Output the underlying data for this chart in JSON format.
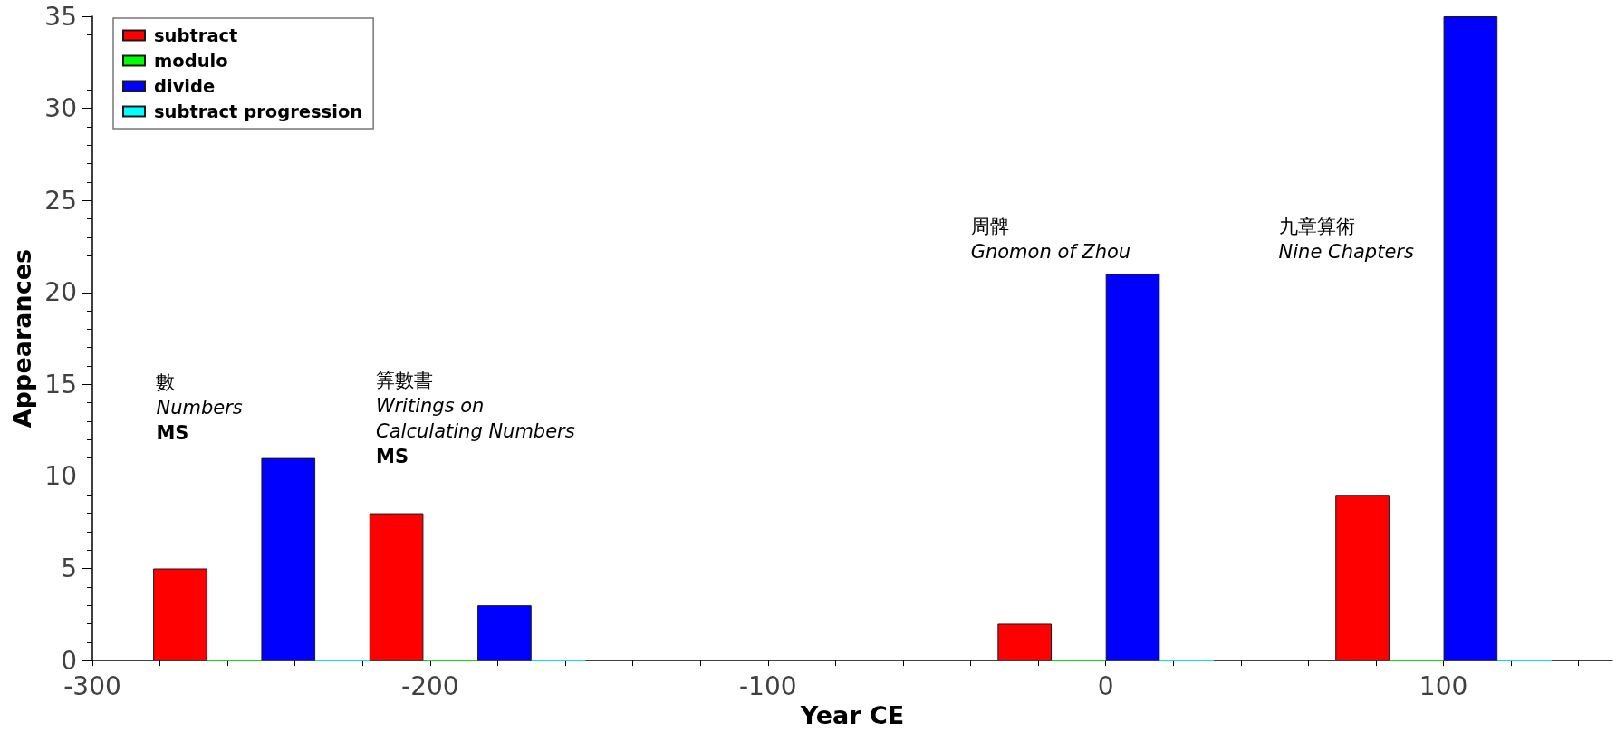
{
  "chart_data": {
    "type": "bar",
    "xlabel": "Year CE",
    "ylabel": "Appearances",
    "x": [
      -250,
      -186,
      0,
      100
    ],
    "series": [
      {
        "name": "subtract",
        "color": "#ff0000",
        "values": [
          5,
          8,
          2,
          9
        ]
      },
      {
        "name": "modulo",
        "color": "#00ff00",
        "values": [
          0,
          0,
          0,
          0
        ]
      },
      {
        "name": "divide",
        "color": "#0000ff",
        "values": [
          11,
          3,
          21,
          35
        ]
      },
      {
        "name": "subtract progression",
        "color": "#00ffff",
        "values": [
          0,
          0,
          0,
          0
        ]
      }
    ],
    "xlim": [
      -300,
      150
    ],
    "xticks": [
      -300,
      {
        "value": -280,
        "label": null
      },
      {
        "value": -260,
        "label": null
      },
      {
        "value": -240,
        "label": null
      },
      {
        "value": -220,
        "label": null
      },
      -200,
      {
        "value": -180,
        "label": null
      },
      {
        "value": -160,
        "label": null
      },
      {
        "value": -140,
        "label": null
      },
      {
        "value": -120,
        "label": null
      },
      -100,
      {
        "value": -80,
        "label": null
      },
      {
        "value": -60,
        "label": null
      },
      {
        "value": -40,
        "label": null
      },
      {
        "value": -20,
        "label": null
      },
      0,
      {
        "value": 20,
        "label": null
      },
      {
        "value": 40,
        "label": null
      },
      {
        "value": 60,
        "label": null
      },
      {
        "value": 80,
        "label": null
      },
      100,
      {
        "value": 120,
        "label": null
      },
      {
        "value": 140,
        "label": null
      }
    ],
    "ylim": [
      0,
      35
    ],
    "yticks": [
      0,
      {
        "value": 1,
        "label": null
      },
      {
        "value": 2,
        "label": null
      },
      {
        "value": 3,
        "label": null
      },
      {
        "value": 4,
        "label": null
      },
      5,
      {
        "value": 6,
        "label": null
      },
      {
        "value": 7,
        "label": null
      },
      {
        "value": 8,
        "label": null
      },
      {
        "value": 9,
        "label": null
      },
      10,
      {
        "value": 11,
        "label": null
      },
      {
        "value": 12,
        "label": null
      },
      {
        "value": 13,
        "label": null
      },
      {
        "value": 14,
        "label": null
      },
      15,
      {
        "value": 16,
        "label": null
      },
      {
        "value": 17,
        "label": null
      },
      {
        "value": 18,
        "label": null
      },
      {
        "value": 19,
        "label": null
      },
      20,
      {
        "value": 21,
        "label": null
      },
      {
        "value": 22,
        "label": null
      },
      {
        "value": 23,
        "label": null
      },
      {
        "value": 24,
        "label": null
      },
      25,
      {
        "value": 26,
        "label": null
      },
      {
        "value": 27,
        "label": null
      },
      {
        "value": 28,
        "label": null
      },
      {
        "value": 29,
        "label": null
      },
      30,
      {
        "value": 31,
        "label": null
      },
      {
        "value": 32,
        "label": null
      },
      {
        "value": 33,
        "label": null
      },
      {
        "value": 34,
        "label": null
      },
      35
    ],
    "legend": "top left",
    "annotations": [
      "數\nNumbers\nMS",
      "筭數書\nWritings on Calculating Numbers\nMS",
      "周髀\nGnomon of Zhou",
      "九章算術\nNine Chapters"
    ]
  }
}
